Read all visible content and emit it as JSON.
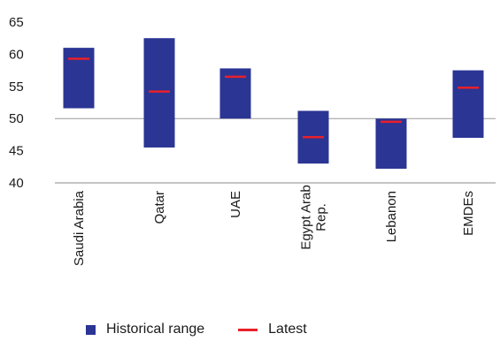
{
  "chart_data": {
    "type": "bar",
    "subtype": "floating-range-with-marker",
    "categories": [
      "Saudi Arabia",
      "Qatar",
      "UAE",
      "Egypt Arab\nRep.",
      "Lebanon",
      "EMDEs"
    ],
    "series": [
      {
        "name": "Historical range",
        "low": [
          51.6,
          45.5,
          50.0,
          43.0,
          42.2,
          47.0
        ],
        "high": [
          61.0,
          62.5,
          57.8,
          51.2,
          50.0,
          57.5
        ],
        "color": "#2b3594"
      },
      {
        "name": "Latest",
        "values": [
          59.3,
          54.2,
          56.5,
          47.1,
          49.5,
          54.8
        ],
        "color": "#e8202a"
      }
    ],
    "ylim": [
      40,
      65
    ],
    "yticks": [
      40,
      45,
      50,
      55,
      60,
      65
    ],
    "reference_line": 50,
    "grid": false,
    "legend_position": "bottom",
    "title": "",
    "xlabel": "",
    "ylabel": ""
  }
}
